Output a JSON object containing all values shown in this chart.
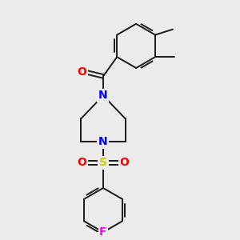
{
  "bg_color": "#ebebeb",
  "bond_color": "#1a1a1a",
  "atom_colors": {
    "N": "#0000ff",
    "O": "#ff0000",
    "S": "#cccc00",
    "F": "#ff00ff",
    "C": "#1a1a1a"
  },
  "bond_width": 1.4,
  "figsize": [
    3.0,
    3.0
  ],
  "dpi": 100,
  "xlim": [
    -1.2,
    1.6
  ],
  "ylim": [
    -2.6,
    2.4
  ]
}
